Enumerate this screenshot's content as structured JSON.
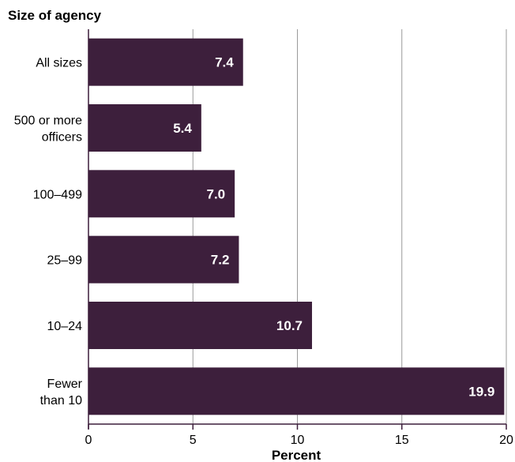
{
  "chart_data": {
    "type": "bar",
    "orientation": "horizontal",
    "title": "",
    "ylabel": "Size of agency",
    "xlabel": "Percent",
    "categories": [
      [
        "All sizes"
      ],
      [
        "500 or more",
        "officers"
      ],
      [
        "100–499"
      ],
      [
        "25–99"
      ],
      [
        "10–24"
      ],
      [
        "Fewer",
        "than 10"
      ]
    ],
    "values": [
      7.4,
      5.4,
      7.0,
      7.2,
      10.7,
      19.9
    ],
    "data_labels": [
      "7.4",
      "5.4",
      "7.0",
      "7.2",
      "10.7",
      "19.9"
    ],
    "xlim": [
      0,
      20
    ],
    "xticks": [
      0,
      5,
      10,
      15,
      20
    ],
    "grid": true,
    "legend": "none",
    "bar_color": "#3d1f3c",
    "grid_color": "#9a9a9a",
    "axis_color": "#3d1f3c"
  }
}
